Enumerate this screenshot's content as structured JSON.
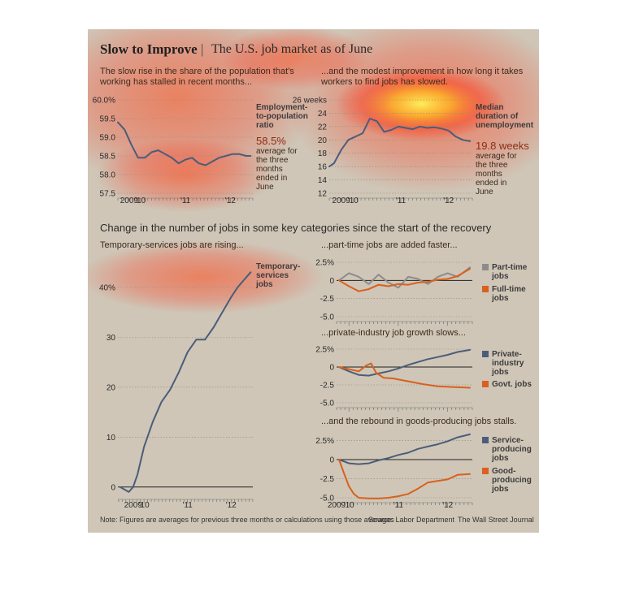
{
  "header": {
    "title": "Slow to Improve",
    "separator": "|",
    "subtitle": "The U.S. job market as of June"
  },
  "captions": {
    "emp_pop": "The slow rise in the share of the population that's working has stalled in recent months...",
    "duration": "...and the modest improvement in how long it takes workers to find jobs has slowed.",
    "section": "Change in the number of jobs in some key categories since the start of the recovery",
    "temp": "Temporary-services jobs are rising...",
    "parttime": "...part-time jobs are added faster...",
    "private": "...private-industry job growth slows...",
    "goods": "...and the rebound in goods-producing jobs stalls."
  },
  "annotations": {
    "emp_pop_label": "Employment-to-population ratio",
    "emp_pop_value": "58.5%",
    "emp_pop_note": "average for the three months ended in June",
    "duration_label": "Median duration of unemployment",
    "duration_value": "19.8 weeks",
    "duration_note": "average for the three months ended in June",
    "temp_label": "Temporary-services jobs"
  },
  "legends": {
    "parttime": [
      "Part-time jobs",
      "Full-time jobs"
    ],
    "private": [
      "Private-industry jobs",
      "Govt. jobs"
    ],
    "goods": [
      "Service-producing jobs",
      "Good-producing jobs"
    ]
  },
  "footer": {
    "note": "Note: Figures are averages for previous three months or calculations using those averages",
    "source": "Source: Labor Department",
    "credit": "The Wall Street Journal"
  },
  "colors": {
    "background": "#cfc6b7",
    "blue_series": "#4b5d7a",
    "orange_series": "#d9601e",
    "text_dark": "#2a2a2a",
    "accent_red": "#8b2e16"
  },
  "chart_data": [
    {
      "id": "emp_pop",
      "type": "line",
      "xlim": [
        2009.5,
        2012.5
      ],
      "ylim": [
        57.5,
        60.0
      ],
      "yticks": [
        57.5,
        58.0,
        58.5,
        59.0,
        59.5,
        60.0
      ],
      "ytick_labels": [
        "57.5",
        "58.0",
        "58.5",
        "59.0",
        "59.5",
        "60.0%"
      ],
      "xtick_labels": [
        {
          "x": 2009.75,
          "t": "2009"
        },
        {
          "x": 2010.0,
          "t": "'10"
        },
        {
          "x": 2011.0,
          "t": "'11"
        },
        {
          "x": 2012.0,
          "t": "'12"
        }
      ],
      "series": [
        {
          "color": "#4b5d7a",
          "x": [
            2009.5,
            2009.65,
            2009.8,
            2009.95,
            2010.1,
            2010.25,
            2010.4,
            2010.55,
            2010.7,
            2010.85,
            2011.0,
            2011.15,
            2011.3,
            2011.45,
            2011.6,
            2011.75,
            2011.9,
            2012.05,
            2012.2,
            2012.35,
            2012.45
          ],
          "y": [
            59.4,
            59.2,
            58.8,
            58.45,
            58.45,
            58.6,
            58.65,
            58.55,
            58.45,
            58.3,
            58.4,
            58.45,
            58.3,
            58.25,
            58.35,
            58.45,
            58.5,
            58.55,
            58.55,
            58.5,
            58.5
          ]
        }
      ]
    },
    {
      "id": "duration",
      "type": "line",
      "xlim": [
        2009.5,
        2012.5
      ],
      "ylim": [
        12,
        26
      ],
      "yticks": [
        12,
        14,
        16,
        18,
        20,
        22,
        24,
        26
      ],
      "ytick_labels": [
        "12",
        "14",
        "16",
        "18",
        "20",
        "22",
        "24",
        "26 weeks"
      ],
      "xtick_labels": [
        {
          "x": 2009.75,
          "t": "2009"
        },
        {
          "x": 2010.0,
          "t": "'10"
        },
        {
          "x": 2011.0,
          "t": "'11"
        },
        {
          "x": 2012.0,
          "t": "'12"
        }
      ],
      "series": [
        {
          "color": "#4b5d7a",
          "x": [
            2009.5,
            2009.6,
            2009.75,
            2009.9,
            2010.05,
            2010.2,
            2010.35,
            2010.5,
            2010.65,
            2010.8,
            2010.95,
            2011.1,
            2011.25,
            2011.4,
            2011.55,
            2011.7,
            2011.85,
            2012.0,
            2012.15,
            2012.3,
            2012.45
          ],
          "y": [
            16,
            16.5,
            18.5,
            20,
            20.5,
            21,
            23.2,
            22.8,
            21.2,
            21.5,
            22,
            21.8,
            21.6,
            22,
            21.8,
            21.9,
            21.7,
            21.4,
            20.5,
            20,
            19.8
          ]
        }
      ]
    },
    {
      "id": "temp",
      "type": "line",
      "unit": "%",
      "xlim": [
        2009.4,
        2012.5
      ],
      "ylim": [
        -1.5,
        45
      ],
      "yticks": [
        0,
        10,
        20,
        30,
        40
      ],
      "ytick_labels": [
        "0",
        "10",
        "20",
        "30",
        "40%"
      ],
      "xtick_labels": [
        {
          "x": 2009.75,
          "t": "2009"
        },
        {
          "x": 2010.0,
          "t": "'10"
        },
        {
          "x": 2011.0,
          "t": "'11"
        },
        {
          "x": 2012.0,
          "t": "'12"
        }
      ],
      "series": [
        {
          "color": "#4b5d7a",
          "x": [
            2009.45,
            2009.55,
            2009.65,
            2009.75,
            2009.85,
            2010.0,
            2010.2,
            2010.4,
            2010.6,
            2010.8,
            2011.0,
            2011.2,
            2011.4,
            2011.6,
            2011.8,
            2012.0,
            2012.15,
            2012.3,
            2012.45
          ],
          "y": [
            0,
            -0.5,
            -1,
            0,
            2.5,
            8,
            13,
            17,
            19.5,
            23,
            27,
            29.5,
            29.5,
            32,
            35,
            38,
            40,
            41.5,
            43
          ]
        }
      ]
    },
    {
      "id": "parttime",
      "type": "line",
      "unit": "%",
      "xlim": [
        2009.75,
        2012.5
      ],
      "ylim": [
        -5.0,
        2.5
      ],
      "yticks": [
        -5.0,
        -2.5,
        0,
        2.5
      ],
      "ytick_labels": [
        "-5.0",
        "-2.5",
        "0",
        "2.5%"
      ],
      "xtick_labels": [],
      "series": [
        {
          "name": "Part-time jobs",
          "color": "#8c8c8c",
          "x": [
            2009.8,
            2010.0,
            2010.2,
            2010.4,
            2010.6,
            2010.8,
            2011.0,
            2011.2,
            2011.4,
            2011.6,
            2011.8,
            2012.0,
            2012.2,
            2012.45
          ],
          "y": [
            0,
            1.0,
            0.5,
            -0.5,
            0.8,
            -0.3,
            -1.0,
            0.5,
            0.2,
            -0.5,
            0.5,
            1.0,
            0.5,
            1.8
          ]
        },
        {
          "name": "Full-time jobs",
          "color": "#d9601e",
          "x": [
            2009.8,
            2010.0,
            2010.2,
            2010.4,
            2010.6,
            2010.8,
            2011.0,
            2011.2,
            2011.4,
            2011.6,
            2011.8,
            2012.0,
            2012.2,
            2012.45
          ],
          "y": [
            0,
            -0.8,
            -1.5,
            -1.2,
            -0.6,
            -0.8,
            -0.5,
            -0.6,
            -0.3,
            -0.2,
            0.1,
            0.2,
            0.6,
            1.6
          ]
        }
      ]
    },
    {
      "id": "private",
      "type": "line",
      "unit": "%",
      "xlim": [
        2009.75,
        2012.5
      ],
      "ylim": [
        -5.0,
        2.5
      ],
      "yticks": [
        -5.0,
        -2.5,
        0,
        2.5
      ],
      "ytick_labels": [
        "-5.0",
        "-2.5",
        "0",
        "2.5%"
      ],
      "xtick_labels": [],
      "series": [
        {
          "name": "Private-industry jobs",
          "color": "#4b5d7a",
          "x": [
            2009.8,
            2010.0,
            2010.2,
            2010.4,
            2010.6,
            2010.8,
            2011.0,
            2011.2,
            2011.4,
            2011.6,
            2011.8,
            2012.0,
            2012.2,
            2012.45
          ],
          "y": [
            0,
            -0.6,
            -1.1,
            -1.2,
            -0.9,
            -0.6,
            -0.2,
            0.3,
            0.7,
            1.1,
            1.4,
            1.7,
            2.1,
            2.4
          ]
        },
        {
          "name": "Govt. jobs",
          "color": "#d9601e",
          "x": [
            2009.8,
            2010.0,
            2010.2,
            2010.35,
            2010.45,
            2010.55,
            2010.7,
            2010.9,
            2011.2,
            2011.5,
            2011.8,
            2012.1,
            2012.45
          ],
          "y": [
            0,
            -0.3,
            -0.6,
            0.2,
            0.5,
            -0.8,
            -1.5,
            -1.6,
            -2.0,
            -2.4,
            -2.7,
            -2.8,
            -2.9
          ]
        }
      ]
    },
    {
      "id": "goods",
      "type": "line",
      "unit": "%",
      "xlim": [
        2009.75,
        2012.5
      ],
      "ylim": [
        -5.0,
        3.5
      ],
      "yticks": [
        -5.0,
        -2.5,
        0,
        2.5
      ],
      "ytick_labels": [
        "-5.0",
        "-2.5",
        "0",
        "2.5%"
      ],
      "xtick_labels": [
        {
          "x": 2009.75,
          "t": "2009"
        },
        {
          "x": 2010.0,
          "t": "'10"
        },
        {
          "x": 2011.0,
          "t": "'11"
        },
        {
          "x": 2012.0,
          "t": "'12"
        }
      ],
      "series": [
        {
          "name": "Service-producing jobs",
          "color": "#4b5d7a",
          "x": [
            2009.8,
            2010.0,
            2010.2,
            2010.4,
            2010.6,
            2010.8,
            2011.0,
            2011.2,
            2011.4,
            2011.6,
            2011.8,
            2012.0,
            2012.2,
            2012.45
          ],
          "y": [
            0,
            -0.5,
            -0.6,
            -0.5,
            -0.1,
            0.2,
            0.6,
            0.9,
            1.4,
            1.7,
            2.0,
            2.4,
            2.9,
            3.3
          ]
        },
        {
          "name": "Good-producing jobs",
          "color": "#d9601e",
          "x": [
            2009.8,
            2009.9,
            2010.0,
            2010.1,
            2010.2,
            2010.4,
            2010.6,
            2010.8,
            2011.0,
            2011.2,
            2011.4,
            2011.6,
            2011.8,
            2012.0,
            2012.2,
            2012.45
          ],
          "y": [
            0,
            -1.8,
            -3.5,
            -4.5,
            -5.0,
            -5.1,
            -5.1,
            -5.0,
            -4.8,
            -4.5,
            -3.8,
            -3.0,
            -2.8,
            -2.6,
            -2.0,
            -1.9
          ]
        }
      ]
    }
  ]
}
